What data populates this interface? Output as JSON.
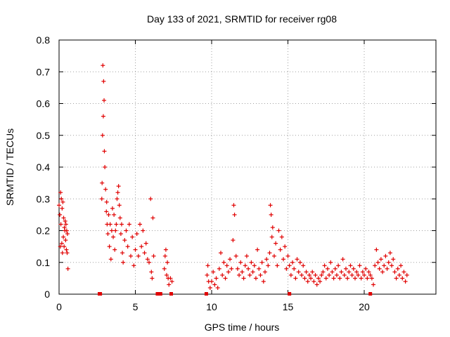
{
  "chart_data": {
    "type": "scatter",
    "title": "Day 133 of 2021, SRMTID for receiver rg08",
    "xlabel": "GPS time / hours",
    "ylabel": "SRMTID / TECUs",
    "xlim": [
      0,
      24.7
    ],
    "ylim": [
      0,
      0.8
    ],
    "xticks": [
      0,
      5,
      10,
      15,
      20
    ],
    "xtick_labels": [
      "0",
      "5",
      "10",
      "15",
      "20"
    ],
    "yticks": [
      0,
      0.1,
      0.2,
      0.3,
      0.4,
      0.5,
      0.6,
      0.7,
      0.8
    ],
    "ytick_labels": [
      "0",
      "0.1",
      "0.2",
      "0.3",
      "0.4",
      "0.5",
      "0.6",
      "0.7",
      "0.8"
    ],
    "grid": true,
    "marker": "plus",
    "series": [
      {
        "name": "SRMTID",
        "color": "#e00000",
        "points": [
          [
            0.0,
            0.28
          ],
          [
            0.05,
            0.25
          ],
          [
            0.08,
            0.15
          ],
          [
            0.1,
            0.32
          ],
          [
            0.12,
            0.22
          ],
          [
            0.15,
            0.3
          ],
          [
            0.18,
            0.16
          ],
          [
            0.2,
            0.27
          ],
          [
            0.22,
            0.13
          ],
          [
            0.25,
            0.29
          ],
          [
            0.28,
            0.18
          ],
          [
            0.3,
            0.24
          ],
          [
            0.33,
            0.15
          ],
          [
            0.35,
            0.21
          ],
          [
            0.38,
            0.2
          ],
          [
            0.4,
            0.23
          ],
          [
            0.43,
            0.17
          ],
          [
            0.45,
            0.22
          ],
          [
            0.48,
            0.14
          ],
          [
            0.5,
            0.2
          ],
          [
            0.53,
            0.13
          ],
          [
            0.55,
            0.19
          ],
          [
            0.58,
            0.08
          ],
          [
            2.8,
            0.3
          ],
          [
            2.82,
            0.35
          ],
          [
            2.85,
            0.5
          ],
          [
            2.87,
            0.72
          ],
          [
            2.9,
            0.56
          ],
          [
            2.92,
            0.67
          ],
          [
            2.95,
            0.61
          ],
          [
            2.97,
            0.45
          ],
          [
            3.0,
            0.4
          ],
          [
            3.05,
            0.33
          ],
          [
            3.1,
            0.26
          ],
          [
            3.12,
            0.29
          ],
          [
            3.15,
            0.22
          ],
          [
            3.2,
            0.19
          ],
          [
            3.25,
            0.25
          ],
          [
            3.3,
            0.15
          ],
          [
            3.35,
            0.22
          ],
          [
            3.4,
            0.11
          ],
          [
            3.45,
            0.2
          ],
          [
            3.5,
            0.27
          ],
          [
            3.55,
            0.18
          ],
          [
            3.6,
            0.25
          ],
          [
            3.65,
            0.14
          ],
          [
            3.7,
            0.2
          ],
          [
            3.75,
            0.22
          ],
          [
            3.8,
            0.3
          ],
          [
            3.85,
            0.32
          ],
          [
            3.9,
            0.34
          ],
          [
            3.95,
            0.28
          ],
          [
            4.0,
            0.24
          ],
          [
            4.05,
            0.19
          ],
          [
            4.1,
            0.22
          ],
          [
            4.15,
            0.13
          ],
          [
            4.2,
            0.1
          ],
          [
            4.3,
            0.17
          ],
          [
            4.4,
            0.2
          ],
          [
            4.5,
            0.15
          ],
          [
            4.6,
            0.22
          ],
          [
            4.7,
            0.12
          ],
          [
            4.8,
            0.18
          ],
          [
            4.9,
            0.09
          ],
          [
            5.0,
            0.14
          ],
          [
            5.1,
            0.19
          ],
          [
            5.2,
            0.12
          ],
          [
            5.3,
            0.22
          ],
          [
            5.4,
            0.15
          ],
          [
            5.5,
            0.2
          ],
          [
            5.6,
            0.13
          ],
          [
            5.7,
            0.16
          ],
          [
            5.8,
            0.11
          ],
          [
            5.9,
            0.1
          ],
          [
            6.0,
            0.3
          ],
          [
            6.05,
            0.07
          ],
          [
            6.1,
            0.05
          ],
          [
            6.15,
            0.24
          ],
          [
            6.2,
            0.12
          ],
          [
            6.9,
            0.08
          ],
          [
            6.95,
            0.12
          ],
          [
            7.0,
            0.14
          ],
          [
            7.05,
            0.06
          ],
          [
            7.1,
            0.1
          ],
          [
            7.15,
            0.05
          ],
          [
            7.2,
            0.03
          ],
          [
            7.3,
            0.05
          ],
          [
            7.4,
            0.04
          ],
          [
            9.7,
            0.06
          ],
          [
            9.75,
            0.09
          ],
          [
            9.8,
            0.04
          ],
          [
            9.9,
            0.02
          ],
          [
            10.0,
            0.04
          ],
          [
            10.1,
            0.07
          ],
          [
            10.2,
            0.03
          ],
          [
            10.3,
            0.05
          ],
          [
            10.4,
            0.02
          ],
          [
            10.5,
            0.08
          ],
          [
            10.6,
            0.13
          ],
          [
            10.7,
            0.06
          ],
          [
            10.8,
            0.1
          ],
          [
            10.9,
            0.05
          ],
          [
            11.0,
            0.09
          ],
          [
            11.1,
            0.07
          ],
          [
            11.2,
            0.11
          ],
          [
            11.3,
            0.08
          ],
          [
            11.4,
            0.17
          ],
          [
            11.45,
            0.28
          ],
          [
            11.5,
            0.25
          ],
          [
            11.6,
            0.12
          ],
          [
            11.7,
            0.08
          ],
          [
            11.8,
            0.06
          ],
          [
            11.9,
            0.1
          ],
          [
            12.0,
            0.07
          ],
          [
            12.1,
            0.05
          ],
          [
            12.2,
            0.09
          ],
          [
            12.3,
            0.12
          ],
          [
            12.4,
            0.08
          ],
          [
            12.5,
            0.06
          ],
          [
            12.6,
            0.1
          ],
          [
            12.7,
            0.07
          ],
          [
            12.8,
            0.09
          ],
          [
            12.9,
            0.05
          ],
          [
            13.0,
            0.14
          ],
          [
            13.1,
            0.08
          ],
          [
            13.2,
            0.06
          ],
          [
            13.3,
            0.1
          ],
          [
            13.4,
            0.04
          ],
          [
            13.5,
            0.07
          ],
          [
            13.6,
            0.11
          ],
          [
            13.7,
            0.09
          ],
          [
            13.8,
            0.13
          ],
          [
            13.85,
            0.28
          ],
          [
            13.9,
            0.25
          ],
          [
            13.95,
            0.18
          ],
          [
            14.0,
            0.21
          ],
          [
            14.1,
            0.12
          ],
          [
            14.2,
            0.16
          ],
          [
            14.3,
            0.09
          ],
          [
            14.4,
            0.2
          ],
          [
            14.5,
            0.14
          ],
          [
            14.6,
            0.18
          ],
          [
            14.7,
            0.11
          ],
          [
            14.8,
            0.15
          ],
          [
            14.9,
            0.08
          ],
          [
            15.0,
            0.12
          ],
          [
            15.1,
            0.09
          ],
          [
            15.2,
            0.06
          ],
          [
            15.3,
            0.1
          ],
          [
            15.4,
            0.08
          ],
          [
            15.5,
            0.05
          ],
          [
            15.6,
            0.11
          ],
          [
            15.7,
            0.07
          ],
          [
            15.8,
            0.1
          ],
          [
            15.9,
            0.06
          ],
          [
            16.0,
            0.09
          ],
          [
            16.1,
            0.05
          ],
          [
            16.2,
            0.07
          ],
          [
            16.3,
            0.04
          ],
          [
            16.4,
            0.06
          ],
          [
            16.5,
            0.05
          ],
          [
            16.6,
            0.07
          ],
          [
            16.7,
            0.04
          ],
          [
            16.8,
            0.06
          ],
          [
            16.9,
            0.03
          ],
          [
            17.0,
            0.05
          ],
          [
            17.1,
            0.04
          ],
          [
            17.2,
            0.06
          ],
          [
            17.3,
            0.07
          ],
          [
            17.4,
            0.09
          ],
          [
            17.5,
            0.05
          ],
          [
            17.6,
            0.08
          ],
          [
            17.7,
            0.06
          ],
          [
            17.8,
            0.1
          ],
          [
            17.9,
            0.07
          ],
          [
            18.0,
            0.05
          ],
          [
            18.1,
            0.08
          ],
          [
            18.2,
            0.06
          ],
          [
            18.3,
            0.09
          ],
          [
            18.4,
            0.05
          ],
          [
            18.5,
            0.07
          ],
          [
            18.6,
            0.11
          ],
          [
            18.7,
            0.06
          ],
          [
            18.8,
            0.08
          ],
          [
            18.9,
            0.05
          ],
          [
            19.0,
            0.07
          ],
          [
            19.1,
            0.09
          ],
          [
            19.2,
            0.06
          ],
          [
            19.3,
            0.08
          ],
          [
            19.4,
            0.05
          ],
          [
            19.5,
            0.07
          ],
          [
            19.6,
            0.06
          ],
          [
            19.7,
            0.09
          ],
          [
            19.8,
            0.05
          ],
          [
            19.9,
            0.07
          ],
          [
            20.0,
            0.06
          ],
          [
            20.1,
            0.08
          ],
          [
            20.2,
            0.05
          ],
          [
            20.3,
            0.07
          ],
          [
            20.4,
            0.06
          ],
          [
            20.5,
            0.05
          ],
          [
            20.6,
            0.03
          ],
          [
            20.7,
            0.09
          ],
          [
            20.8,
            0.14
          ],
          [
            20.9,
            0.1
          ],
          [
            21.0,
            0.08
          ],
          [
            21.1,
            0.11
          ],
          [
            21.2,
            0.07
          ],
          [
            21.3,
            0.09
          ],
          [
            21.4,
            0.12
          ],
          [
            21.5,
            0.08
          ],
          [
            21.6,
            0.1
          ],
          [
            21.7,
            0.13
          ],
          [
            21.8,
            0.09
          ],
          [
            21.9,
            0.11
          ],
          [
            22.0,
            0.07
          ],
          [
            22.1,
            0.05
          ],
          [
            22.2,
            0.08
          ],
          [
            22.3,
            0.06
          ],
          [
            22.4,
            0.09
          ],
          [
            22.5,
            0.05
          ],
          [
            22.6,
            0.07
          ],
          [
            22.7,
            0.04
          ],
          [
            22.8,
            0.06
          ]
        ]
      }
    ],
    "zero_markers_x": [
      2.65,
      2.7,
      6.45,
      6.5,
      6.55,
      6.6,
      6.65,
      7.35,
      9.65,
      15.1,
      20.4
    ]
  }
}
